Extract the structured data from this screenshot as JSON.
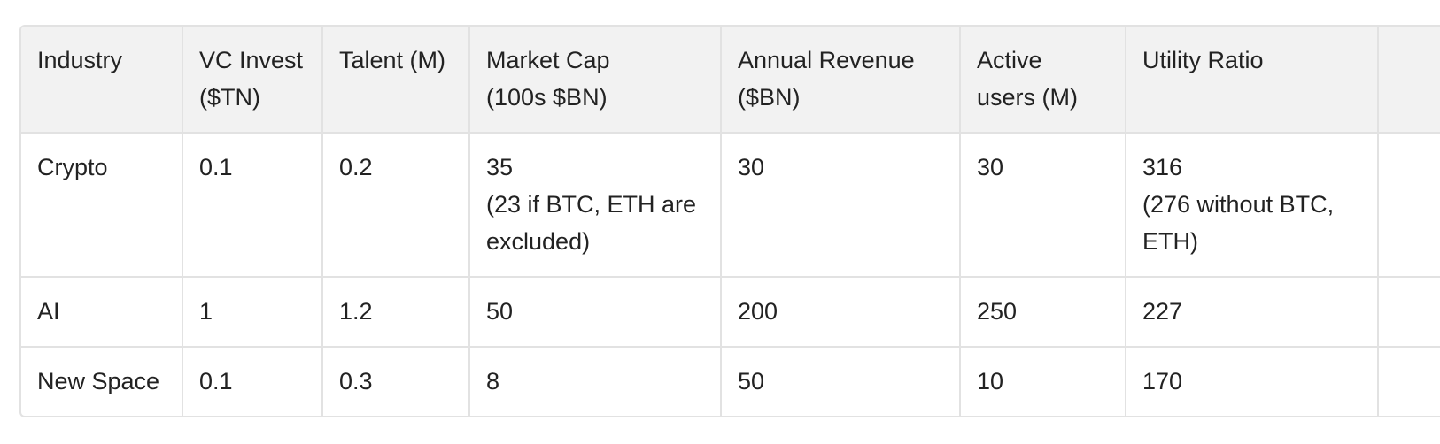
{
  "table": {
    "columns": [
      "Industry",
      "VC Invest\n($TN)",
      "Talent (M)",
      "Market Cap\n(100s $BN)",
      "Annual Revenue\n($BN)",
      "Active\nusers (M)",
      "Utility Ratio",
      ""
    ],
    "rows": [
      [
        "Crypto",
        "0.1",
        "0.2",
        "35\n(23 if BTC, ETH are\nexcluded)",
        "30",
        "30",
        "316\n(276 without BTC,\nETH)",
        ""
      ],
      [
        "AI",
        "1",
        "1.2",
        "50",
        "200",
        "250",
        "227",
        ""
      ],
      [
        "New Space",
        "0.1",
        "0.3",
        "8",
        "50",
        "10",
        "170",
        ""
      ]
    ]
  }
}
